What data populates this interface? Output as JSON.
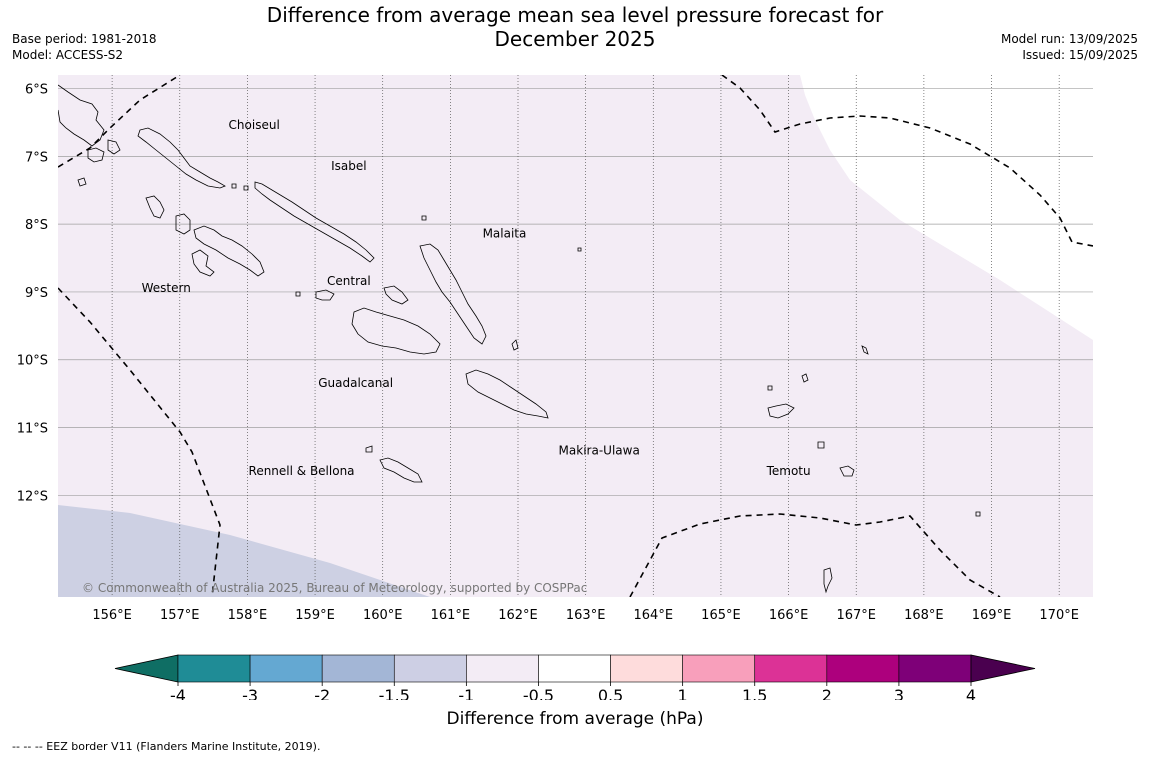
{
  "title": {
    "line1": "Difference from average mean sea level pressure forecast for",
    "line2": "December 2025"
  },
  "meta": {
    "base_period": "Base period: 1981-2018",
    "model": "Model: ACCESS-S2",
    "model_run": "Model run: 13/09/2025",
    "issued": "Issued: 15/09/2025"
  },
  "map": {
    "lat_labels": [
      "6°S",
      "7°S",
      "8°S",
      "9°S",
      "10°S",
      "11°S",
      "12°S"
    ],
    "lat_values": [
      -6,
      -7,
      -8,
      -9,
      -10,
      -11,
      -12
    ],
    "lon_labels": [
      "156°E",
      "157°E",
      "158°E",
      "159°E",
      "160°E",
      "161°E",
      "162°E",
      "163°E",
      "164°E",
      "165°E",
      "166°E",
      "167°E",
      "168°E",
      "169°E",
      "170°E"
    ],
    "lon_values": [
      156,
      157,
      158,
      159,
      160,
      161,
      162,
      163,
      164,
      165,
      166,
      167,
      168,
      169,
      170
    ],
    "extent": {
      "lon_min": 155.2,
      "lon_max": 170.5,
      "lat_max": -5.8,
      "lat_min": -13.5
    },
    "places": [
      {
        "name": "Choiseul",
        "lon": 158.1,
        "lat": -6.6
      },
      {
        "name": "Isabel",
        "lon": 159.5,
        "lat": -7.2
      },
      {
        "name": "Malaita",
        "lon": 161.8,
        "lat": -8.2
      },
      {
        "name": "Western",
        "lon": 156.8,
        "lat": -9.0
      },
      {
        "name": "Central",
        "lon": 159.5,
        "lat": -8.9
      },
      {
        "name": "Guadalcanal",
        "lon": 159.6,
        "lat": -10.4
      },
      {
        "name": "Makira-Ulawa",
        "lon": 163.2,
        "lat": -11.4
      },
      {
        "name": "Rennell & Bellona",
        "lon": 158.8,
        "lat": -11.7
      },
      {
        "name": "Temotu",
        "lon": 166.0,
        "lat": -11.7
      }
    ],
    "copyright": "© Commonwealth of Australia 2025, Bureau of Meteorology, supported by COSPPac",
    "field_color_main": "#f3ecf5",
    "field_color_low": "#cdd0e3"
  },
  "colorbar": {
    "title": "Difference from average (hPa)",
    "tick_labels": [
      "-4",
      "-3",
      "-2",
      "-1.5",
      "-1",
      "-0.5",
      "0.5",
      "1",
      "1.5",
      "2",
      "3",
      "4"
    ],
    "colors": [
      "#0f6e64",
      "#1f8c96",
      "#64a8d2",
      "#a3b6d6",
      "#cdcfe4",
      "#f3ecf5",
      "#ffffff",
      "#fedcdc",
      "#f89fbb",
      "#dc3296",
      "#ad007d",
      "#7e0078",
      "#4a004f"
    ]
  },
  "eez_note": "--  --  -- EEZ border V11 (Flanders Marine Institute, 2019)."
}
